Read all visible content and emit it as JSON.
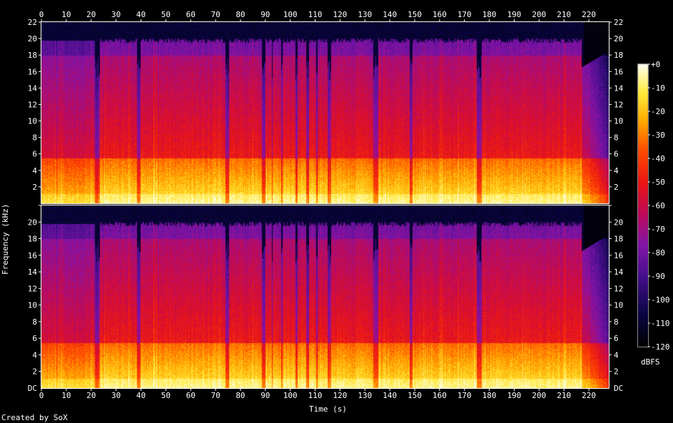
{
  "chart_data": {
    "type": "heatmap",
    "subtype": "spectrogram",
    "channels": 2,
    "xlabel": "Time (s)",
    "ylabel": "Frequency (kHz)",
    "xlim": [
      0,
      228
    ],
    "ylim": [
      0,
      22
    ],
    "x_ticks": [
      0,
      10,
      20,
      30,
      40,
      50,
      60,
      70,
      80,
      90,
      100,
      110,
      120,
      130,
      140,
      150,
      160,
      170,
      180,
      190,
      200,
      210,
      220
    ],
    "x_tick_labels": [
      "0",
      "10",
      "20",
      "30",
      "40",
      "50",
      "60",
      "70",
      "80",
      "90",
      "100",
      "110",
      "120",
      "130",
      "140",
      "150",
      "160",
      "170",
      "180",
      "190",
      "200",
      "210",
      "220"
    ],
    "y_ticks": [
      2,
      4,
      6,
      8,
      10,
      12,
      14,
      16,
      18,
      20,
      22
    ],
    "y_tick_labels": [
      "2",
      "4",
      "6",
      "8",
      "10",
      "12",
      "14",
      "16",
      "18",
      "20",
      "22"
    ],
    "bottom_label": "DC",
    "colorbar": {
      "label": "dBFS",
      "range": [
        -120,
        0
      ],
      "tick_values": [
        0,
        -10,
        -20,
        -30,
        -40,
        -50,
        -60,
        -70,
        -80,
        -90,
        -100,
        -110,
        -120
      ],
      "tick_labels": [
        "+0",
        "-10",
        "-20",
        "-30",
        "-40",
        "-50",
        "-60",
        "-70",
        "-80",
        "-90",
        "-100",
        "-110",
        "-120"
      ]
    },
    "quiet_segments_s": [
      [
        21.5,
        23.5
      ],
      [
        38.5,
        40.0
      ],
      [
        74.0,
        75.5
      ],
      [
        88.5,
        90.0
      ],
      [
        92.5,
        93.0
      ],
      [
        96.5,
        97.0
      ],
      [
        102.0,
        103.0
      ],
      [
        106.5,
        107.5
      ],
      [
        110.5,
        111.0
      ],
      [
        115.0,
        116.5
      ],
      [
        133.5,
        135.5
      ],
      [
        148.0,
        149.0
      ],
      [
        175.0,
        177.0
      ]
    ],
    "fade_out_start_s": 217,
    "credit": "Created by SoX"
  },
  "credit": "Created by SoX",
  "x_axis_label": "Time (s)",
  "y_axis_label": "Frequency (kHz)",
  "colorbar_label": "dBFS"
}
